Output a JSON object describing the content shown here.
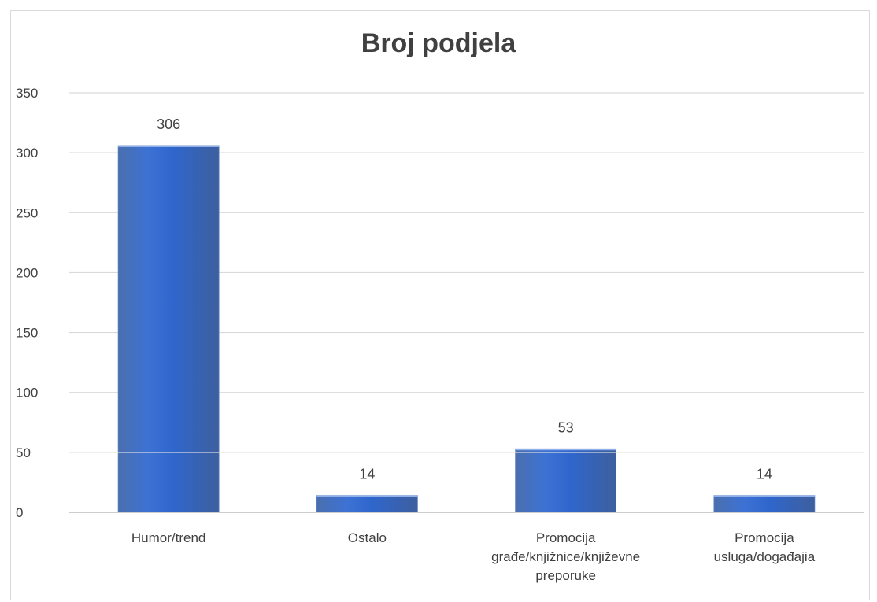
{
  "chart_data": {
    "type": "bar",
    "title": "Broj podjela",
    "categories": [
      [
        "Humor/trend"
      ],
      [
        "Ostalo"
      ],
      [
        "Promocija",
        "građe/knjižnice/književne",
        "preporuke"
      ],
      [
        "Promocija",
        "usluga/događajia"
      ]
    ],
    "values": [
      306,
      14,
      53,
      14
    ],
    "data_labels": [
      "306",
      "14",
      "53",
      "14"
    ],
    "yticks": [
      "0",
      "50",
      "100",
      "150",
      "200",
      "250",
      "300",
      "350"
    ],
    "ylim": [
      0,
      350
    ],
    "grid": true,
    "legend": "none",
    "bar_color": "#3a6ac8",
    "grid_color": "#d9d9d9"
  }
}
